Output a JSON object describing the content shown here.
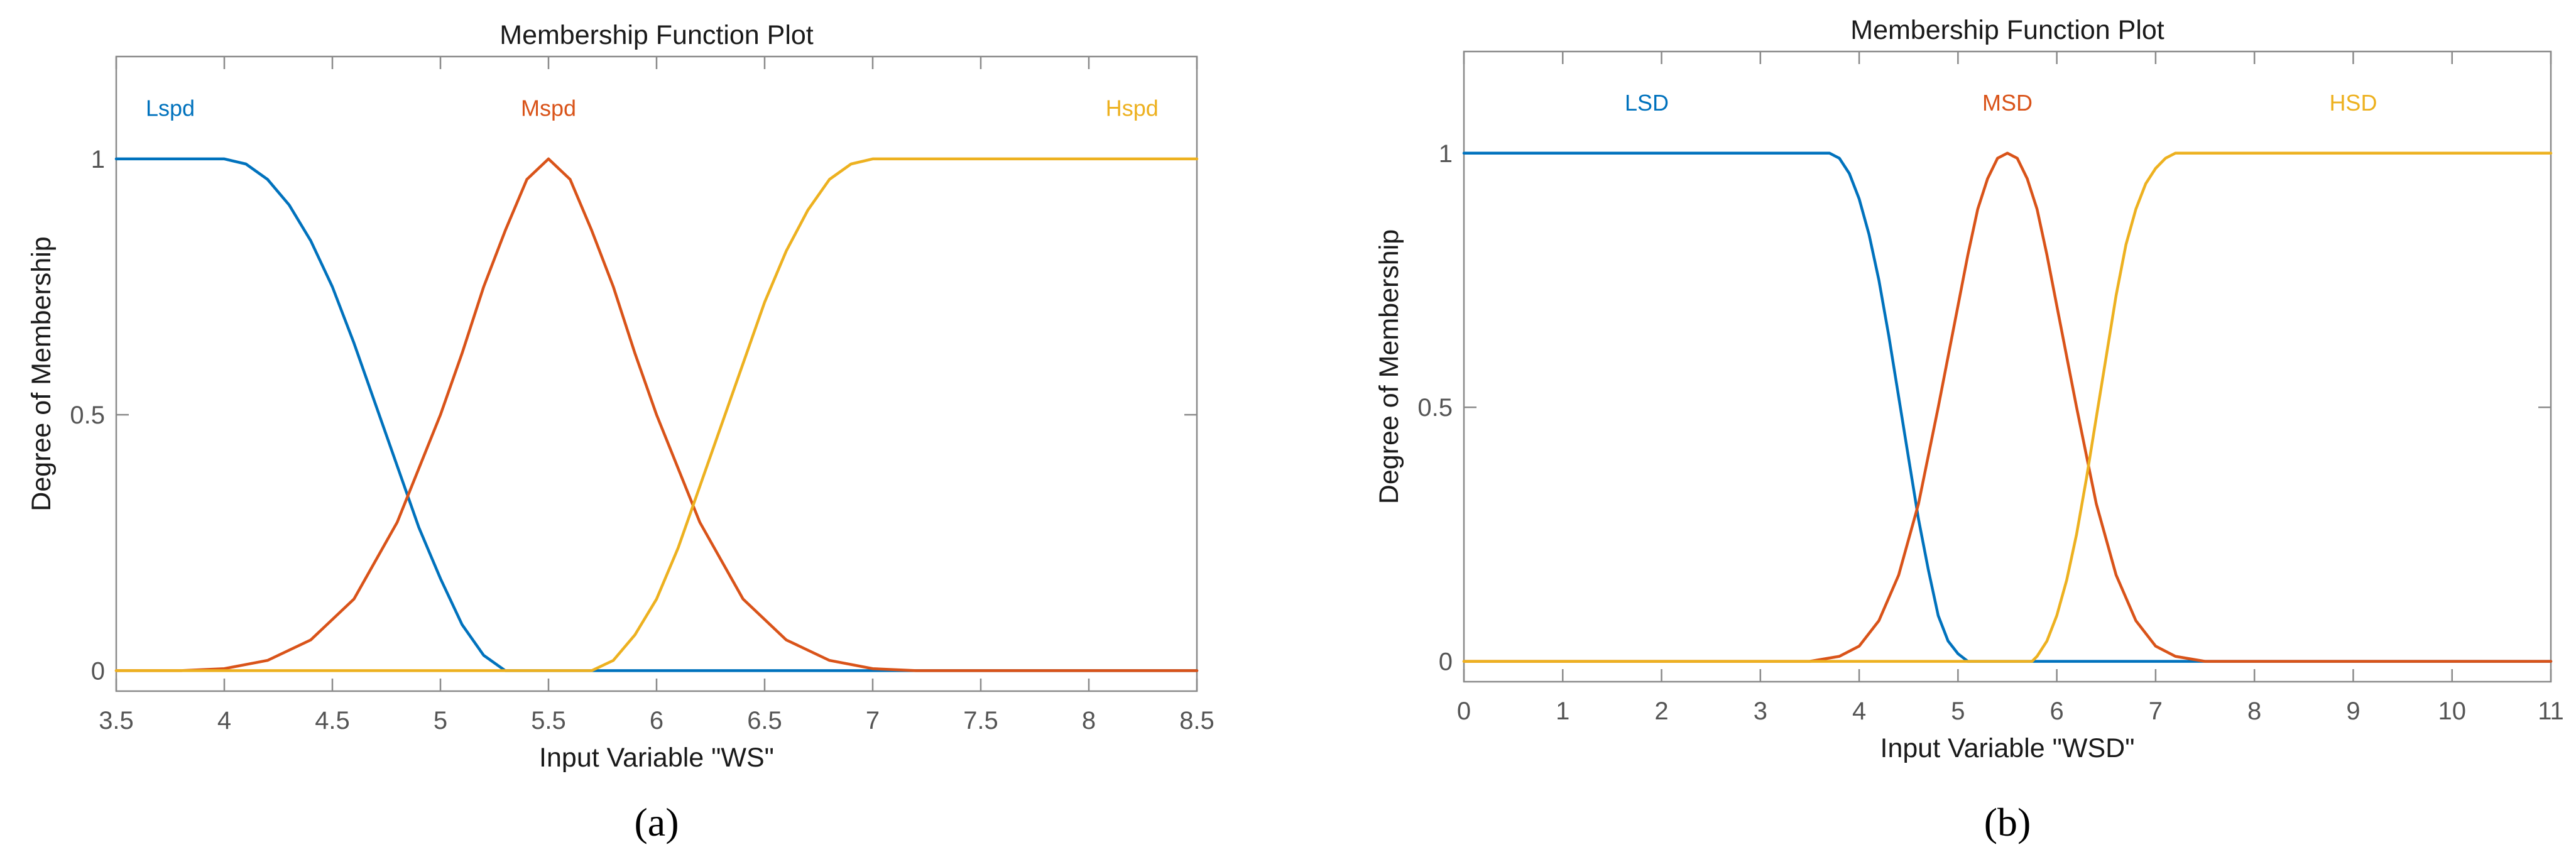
{
  "chart_data": [
    {
      "type": "line",
      "title": "Membership Function Plot",
      "xlabel": "Input Variable \"WS\"",
      "ylabel": "Degree of Membership",
      "xlim": [
        3.5,
        8.5
      ],
      "ylim": [
        -0.04,
        1.2
      ],
      "xticks": [
        "3.5",
        "4",
        "4.5",
        "5",
        "5.5",
        "6",
        "6.5",
        "7",
        "7.5",
        "8",
        "8.5"
      ],
      "yticks": [
        "0",
        "0.5",
        "1"
      ],
      "grid": false,
      "caption": "(a)",
      "series": [
        {
          "name": "Lspd",
          "color": "#0072BD",
          "label_x": 3.75,
          "x": [
            3.5,
            4.0,
            4.1,
            4.2,
            4.3,
            4.4,
            4.5,
            4.6,
            4.7,
            4.8,
            4.9,
            5.0,
            5.1,
            5.2,
            5.3,
            5.4,
            8.5
          ],
          "y": [
            1.0,
            1.0,
            0.99,
            0.96,
            0.91,
            0.84,
            0.75,
            0.64,
            0.52,
            0.4,
            0.28,
            0.18,
            0.09,
            0.03,
            0.0,
            0.0,
            0.0
          ]
        },
        {
          "name": "Mspd",
          "color": "#D95319",
          "label_x": 5.5,
          "x": [
            3.5,
            3.8,
            4.0,
            4.2,
            4.4,
            4.6,
            4.8,
            5.0,
            5.1,
            5.2,
            5.3,
            5.4,
            5.5,
            5.6,
            5.7,
            5.8,
            5.9,
            6.0,
            6.2,
            6.4,
            6.6,
            6.8,
            7.0,
            7.2,
            8.5
          ],
          "y": [
            0.0,
            0.0,
            0.004,
            0.02,
            0.06,
            0.14,
            0.29,
            0.5,
            0.62,
            0.75,
            0.86,
            0.96,
            1.0,
            0.96,
            0.86,
            0.75,
            0.62,
            0.5,
            0.29,
            0.14,
            0.06,
            0.02,
            0.004,
            0.0,
            0.0
          ]
        },
        {
          "name": "Hspd",
          "color": "#EDB120",
          "label_x": 8.2,
          "x": [
            3.5,
            5.7,
            5.8,
            5.9,
            6.0,
            6.1,
            6.2,
            6.3,
            6.4,
            6.5,
            6.6,
            6.7,
            6.8,
            6.9,
            7.0,
            8.5
          ],
          "y": [
            0.0,
            0.0,
            0.02,
            0.07,
            0.14,
            0.24,
            0.36,
            0.48,
            0.6,
            0.72,
            0.82,
            0.9,
            0.96,
            0.99,
            1.0,
            1.0
          ]
        }
      ]
    },
    {
      "type": "line",
      "title": "Membership Function Plot",
      "xlabel": "Input Variable \"WSD\"",
      "ylabel": "Degree of Membership",
      "xlim": [
        0,
        11
      ],
      "ylim": [
        -0.04,
        1.2
      ],
      "xticks": [
        "0",
        "1",
        "2",
        "3",
        "4",
        "5",
        "6",
        "7",
        "8",
        "9",
        "10",
        "11"
      ],
      "yticks": [
        "0",
        "0.5",
        "1"
      ],
      "grid": false,
      "caption": "(b)",
      "series": [
        {
          "name": "LSD",
          "color": "#0072BD",
          "label_x": 1.85,
          "x": [
            0,
            3.7,
            3.8,
            3.9,
            4.0,
            4.1,
            4.2,
            4.3,
            4.4,
            4.5,
            4.6,
            4.7,
            4.8,
            4.9,
            5.0,
            5.1,
            5.2,
            11
          ],
          "y": [
            1.0,
            1.0,
            0.99,
            0.96,
            0.91,
            0.84,
            0.75,
            0.64,
            0.52,
            0.4,
            0.28,
            0.18,
            0.09,
            0.04,
            0.015,
            0.0,
            0.0,
            0.0
          ]
        },
        {
          "name": "MSD",
          "color": "#D95319",
          "label_x": 5.5,
          "x": [
            0,
            3.5,
            3.8,
            4.0,
            4.2,
            4.4,
            4.6,
            4.8,
            5.0,
            5.1,
            5.2,
            5.3,
            5.4,
            5.5,
            5.6,
            5.7,
            5.8,
            5.9,
            6.0,
            6.2,
            6.4,
            6.6,
            6.8,
            7.0,
            7.2,
            7.5,
            11
          ],
          "y": [
            0.0,
            0.0,
            0.01,
            0.03,
            0.08,
            0.17,
            0.31,
            0.5,
            0.7,
            0.8,
            0.89,
            0.95,
            0.99,
            1.0,
            0.99,
            0.95,
            0.89,
            0.8,
            0.7,
            0.5,
            0.31,
            0.17,
            0.08,
            0.03,
            0.01,
            0.0,
            0.0
          ]
        },
        {
          "name": "HSD",
          "color": "#EDB120",
          "label_x": 9.0,
          "x": [
            0,
            5.75,
            5.8,
            5.9,
            6.0,
            6.1,
            6.2,
            6.3,
            6.4,
            6.5,
            6.6,
            6.7,
            6.8,
            6.9,
            7.0,
            7.1,
            7.2,
            7.3,
            11
          ],
          "y": [
            0.0,
            0.0,
            0.01,
            0.04,
            0.09,
            0.16,
            0.25,
            0.36,
            0.48,
            0.6,
            0.72,
            0.82,
            0.89,
            0.94,
            0.97,
            0.99,
            1.0,
            1.0,
            1.0
          ]
        }
      ]
    }
  ]
}
